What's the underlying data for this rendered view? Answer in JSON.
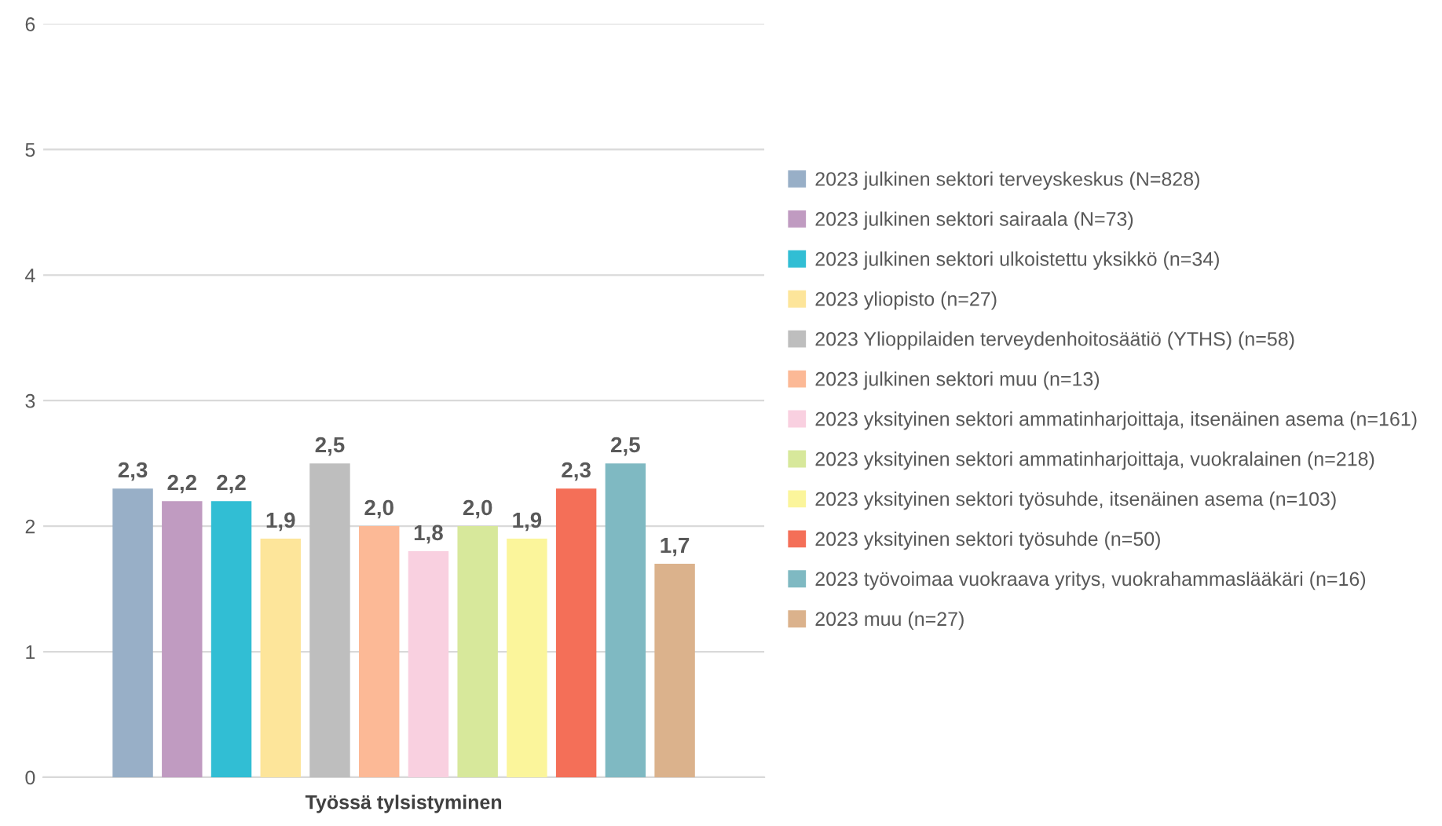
{
  "chart_data": {
    "type": "bar",
    "categories": [
      "Työssä tylsistyminen"
    ],
    "series": [
      {
        "name": "2023 julkinen sektori terveyskeskus (N=828)",
        "color": "#98afc7",
        "values": [
          2.3
        ],
        "value_labels": [
          "2,3"
        ]
      },
      {
        "name": "2023 julkinen sektori sairaala (N=73)",
        "color": "#c09bc1",
        "values": [
          2.2
        ],
        "value_labels": [
          "2,2"
        ]
      },
      {
        "name": "2023 julkinen sektori ulkoistettu yksikkö (n=34)",
        "color": "#31bed4",
        "values": [
          2.2
        ],
        "value_labels": [
          "2,2"
        ]
      },
      {
        "name": "2023 yliopisto (n=27)",
        "color": "#fde59a",
        "values": [
          1.9
        ],
        "value_labels": [
          "1,9"
        ]
      },
      {
        "name": "2023 Ylioppilaiden terveydenhoitosäätiö (YTHS) (n=58)",
        "color": "#bebebe",
        "values": [
          2.5
        ],
        "value_labels": [
          "2,5"
        ]
      },
      {
        "name": "2023 julkinen sektori muu (n=13)",
        "color": "#fcb996",
        "values": [
          2.0
        ],
        "value_labels": [
          "2,0"
        ]
      },
      {
        "name": "2023 yksityinen sektori ammatinharjoittaja, itsenäinen asema (n=161)",
        "color": "#f9d0e0",
        "values": [
          1.8
        ],
        "value_labels": [
          "1,8"
        ]
      },
      {
        "name": "2023 yksityinen sektori ammatinharjoittaja, vuokralainen (n=218)",
        "color": "#d7e89b",
        "values": [
          2.0
        ],
        "value_labels": [
          "2,0"
        ]
      },
      {
        "name": "2023 yksityinen sektori työsuhde, itsenäinen asema (n=103)",
        "color": "#fbf59b",
        "values": [
          1.9
        ],
        "value_labels": [
          "1,9"
        ]
      },
      {
        "name": "2023 yksityinen sektori työsuhde (n=50)",
        "color": "#f46f58",
        "values": [
          2.3
        ],
        "value_labels": [
          "2,3"
        ]
      },
      {
        "name": "2023 työvoimaa vuokraava yritys, vuokrahammaslääkäri (n=16)",
        "color": "#7fb9c2",
        "values": [
          2.5
        ],
        "value_labels": [
          "2,5"
        ]
      },
      {
        "name": "2023 muu (n=27)",
        "color": "#dbb28c",
        "values": [
          1.7
        ],
        "value_labels": [
          "1,7"
        ]
      }
    ],
    "ylim": [
      0,
      6
    ],
    "yticks": [
      0,
      1,
      2,
      3,
      4,
      5,
      6
    ],
    "grid": "y",
    "legend": "right"
  }
}
